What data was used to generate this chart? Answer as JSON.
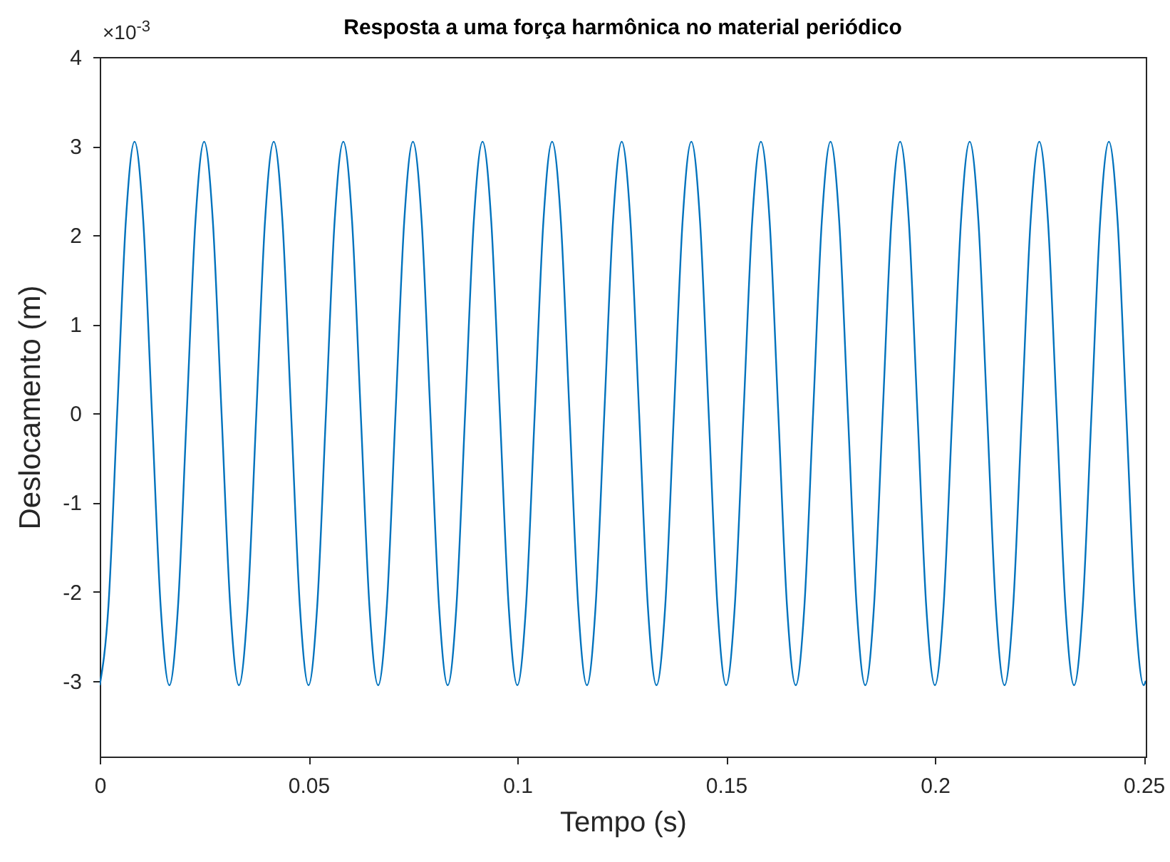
{
  "chart_data": {
    "type": "line",
    "title": "Resposta a uma força harmônica no material periódico",
    "xlabel": "Tempo (s)",
    "ylabel": "Deslocamento (m)",
    "annotations": [
      "×10$^{-3}$"
    ],
    "xlim": [
      0,
      0.2505
    ],
    "xticks": [
      0,
      0.05,
      0.1,
      0.15,
      0.2,
      0.25
    ],
    "ylim": [
      -3.85,
      4
    ],
    "yticks": [
      -3,
      -2,
      -1,
      0,
      1,
      2,
      3,
      4
    ],
    "grid": false,
    "line_style": "solid",
    "x": [
      0,
      0.00208,
      0.00417,
      0.00625,
      0.00833,
      0.01042,
      0.0125,
      0.01458,
      0.01667,
      0.01875,
      0.02083,
      0.02292,
      0.025,
      0.02708,
      0.02917,
      0.03125,
      0.03333,
      0.03542,
      0.0375,
      0.03958,
      0.04167,
      0.04375,
      0.04583,
      0.04792,
      0.05,
      0.05208,
      0.05417,
      0.05625,
      0.05833,
      0.06042,
      0.0625,
      0.06458,
      0.06667,
      0.06875,
      0.07083,
      0.07292,
      0.075,
      0.07708,
      0.07917,
      0.08125,
      0.08333,
      0.08542,
      0.0875,
      0.08958,
      0.09167,
      0.09375,
      0.09583,
      0.09792,
      0.1,
      0.10208,
      0.10417,
      0.10625,
      0.10833,
      0.11042,
      0.1125,
      0.11458,
      0.11667,
      0.11875,
      0.12083,
      0.12292,
      0.125,
      0.12708,
      0.12917,
      0.13125,
      0.13333,
      0.13542,
      0.1375,
      0.13958,
      0.14167,
      0.14375,
      0.14583,
      0.14792,
      0.15,
      0.15208,
      0.15417,
      0.15625,
      0.15833,
      0.16042,
      0.1625,
      0.16458,
      0.16667,
      0.16875,
      0.17083,
      0.17292,
      0.175,
      0.17708,
      0.17917,
      0.18125,
      0.18333,
      0.18542,
      0.1875,
      0.18958,
      0.19167,
      0.19375,
      0.19583,
      0.19792,
      0.2,
      0.20208,
      0.20417,
      0.20625,
      0.20833,
      0.21042,
      0.2125,
      0.21458,
      0.21667,
      0.21875,
      0.22083,
      0.22292,
      0.225,
      0.22708,
      0.22917,
      0.23125,
      0.23333,
      0.23542,
      0.2375,
      0.23958,
      0.24167,
      0.24375,
      0.24583,
      0.24792,
      0.25,
      0.2505
    ],
    "series": [
      {
        "color": "#0072bd",
        "values": [
          -3.05,
          -2.16,
          0,
          2.16,
          3.05,
          2.16,
          0,
          -2.16,
          -3.05,
          -2.16,
          0,
          2.16,
          3.05,
          2.16,
          0,
          -2.16,
          -3.05,
          -2.16,
          0,
          2.16,
          3.05,
          2.16,
          0,
          -2.16,
          -3.05,
          -2.16,
          0,
          2.16,
          3.05,
          2.16,
          0,
          -2.16,
          -3.05,
          -2.16,
          0,
          2.16,
          3.05,
          2.16,
          0,
          -2.16,
          -3.05,
          -2.16,
          0,
          2.16,
          3.05,
          2.16,
          0,
          -2.16,
          -3.05,
          -2.16,
          0,
          2.16,
          3.05,
          2.16,
          0,
          -2.16,
          -3.05,
          -2.16,
          0,
          2.16,
          3.05,
          2.16,
          0,
          -2.16,
          -3.05,
          -2.16,
          0,
          2.16,
          3.05,
          2.16,
          0,
          -2.16,
          -3.05,
          -2.16,
          0,
          2.16,
          3.05,
          2.16,
          0,
          -2.16,
          -3.05,
          -2.16,
          0,
          2.16,
          3.05,
          2.16,
          0,
          -2.16,
          -3.05,
          -2.16,
          0,
          2.16,
          3.05,
          2.16,
          0,
          -2.16,
          -3.05,
          -2.16,
          0,
          2.16,
          3.05,
          2.16,
          0,
          -2.16,
          -3.05,
          -2.16,
          0,
          2.16,
          3.05,
          2.16,
          0,
          -2.16,
          -3.05,
          -2.16,
          0,
          2.16,
          3.05,
          2.16,
          0,
          -2.16,
          -3.05,
          -3.0
        ]
      }
    ]
  }
}
